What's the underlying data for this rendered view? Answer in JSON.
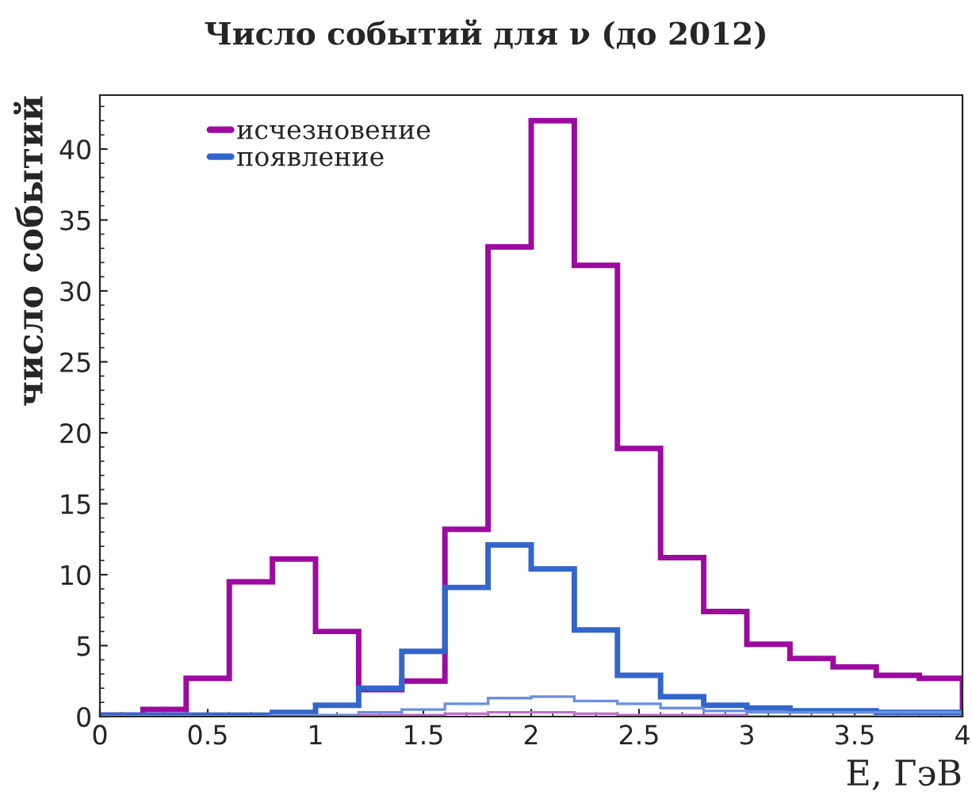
{
  "chart_data": {
    "type": "histogram",
    "title": "Число событий для ν (до 2012)",
    "xlabel": "E, ГэВ",
    "ylabel": "число событий",
    "bins": [
      0,
      0.2,
      0.4,
      0.6,
      0.8,
      1.0,
      1.2,
      1.4,
      1.6,
      1.8,
      2.0,
      2.2,
      2.4,
      2.6,
      2.8,
      3.0,
      3.2,
      3.4,
      3.6,
      3.8,
      4.0
    ],
    "series": [
      {
        "name": "исчезновение",
        "color": "#9c0aa0",
        "values": [
          0.1,
          0.5,
          2.7,
          9.5,
          11.1,
          6.0,
          1.9,
          2.5,
          13.2,
          33.1,
          42.0,
          31.8,
          18.9,
          11.2,
          7.4,
          5.1,
          4.1,
          3.5,
          2.9,
          2.7
        ]
      },
      {
        "name": "появление",
        "color": "#3366cc",
        "values": [
          0.1,
          0.1,
          0.1,
          0.1,
          0.3,
          0.8,
          2.0,
          4.6,
          9.1,
          12.1,
          10.4,
          6.1,
          2.9,
          1.4,
          0.8,
          0.6,
          0.4,
          0.4,
          0.3,
          0.3
        ]
      },
      {
        "color": "#6a8fe0",
        "values": [
          0,
          0,
          0,
          0,
          0.1,
          0.1,
          0.3,
          0.5,
          0.9,
          1.3,
          1.4,
          1.1,
          0.9,
          0.6,
          0.4,
          0.3,
          0.3,
          0.3,
          0.3,
          0.3
        ]
      },
      {
        "color": "#c070c8",
        "values": [
          0,
          0,
          0,
          0,
          0,
          0,
          0.1,
          0.1,
          0.2,
          0.3,
          0.3,
          0.2,
          0.1,
          0.1,
          0.1,
          0,
          0,
          0,
          0,
          0
        ]
      }
    ],
    "xlim": [
      0,
      4
    ],
    "ylim": [
      0,
      43.8
    ],
    "xticks": [
      0,
      0.5,
      1,
      1.5,
      2,
      2.5,
      3,
      3.5,
      4
    ],
    "yticks": [
      0,
      5,
      10,
      15,
      20,
      25,
      30,
      35,
      40
    ],
    "grid": false,
    "legend": "top left"
  }
}
